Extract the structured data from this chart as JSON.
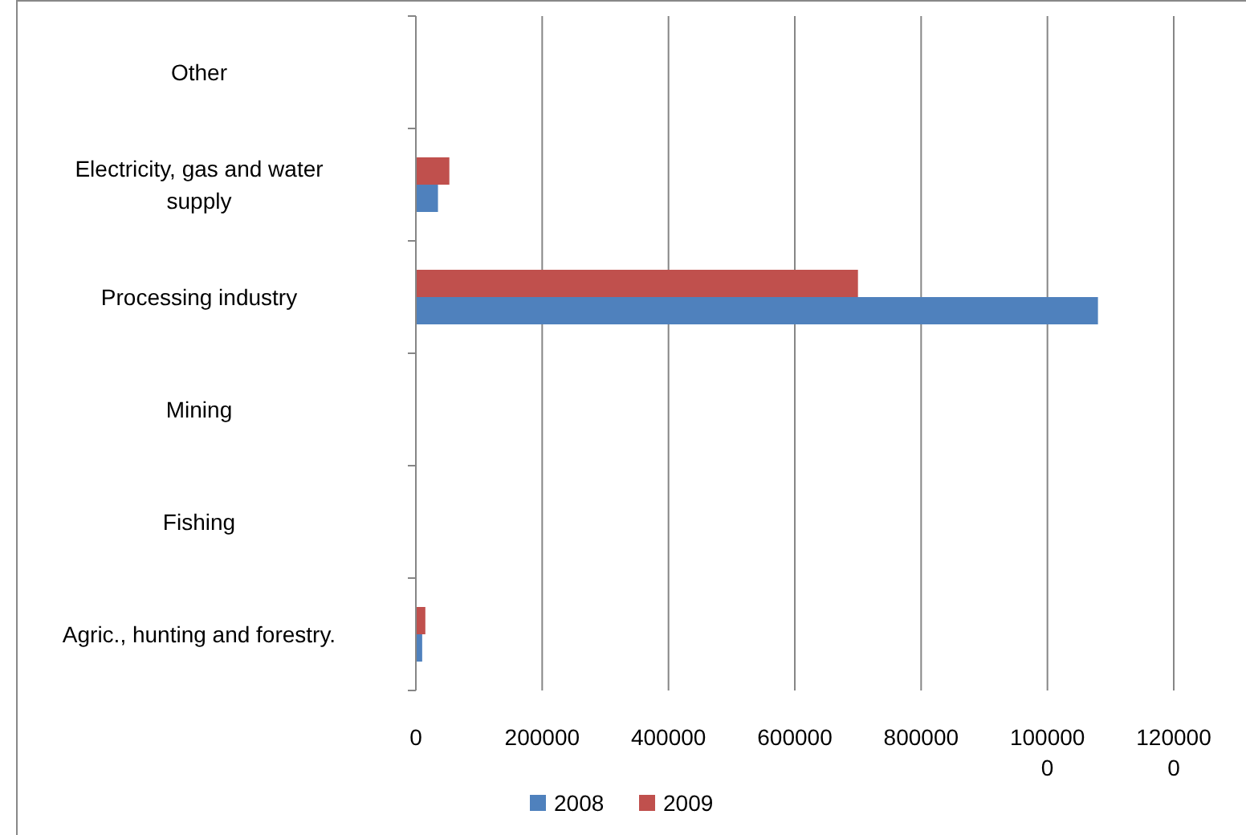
{
  "chart_data": {
    "type": "bar",
    "orientation": "horizontal",
    "categories": [
      "Other",
      "Electricity, gas and water supply",
      "Processing industry",
      "Mining",
      "Fishing",
      "Agric., hunting and forestry."
    ],
    "series": [
      {
        "name": "2008",
        "color": "#4f81bd",
        "values": [
          0,
          35000,
          1080000,
          0,
          0,
          10000
        ]
      },
      {
        "name": "2009",
        "color": "#c0504d",
        "values": [
          0,
          53000,
          700000,
          0,
          0,
          15000
        ]
      }
    ],
    "xlim": [
      0,
      1200000
    ],
    "xticks": [
      0,
      200000,
      400000,
      600000,
      800000,
      {
        "value": 1000000,
        "label": "1000000"
      },
      {
        "value": 1200000,
        "label": "1200000"
      }
    ],
    "grid": "x",
    "legend": "bottom"
  }
}
